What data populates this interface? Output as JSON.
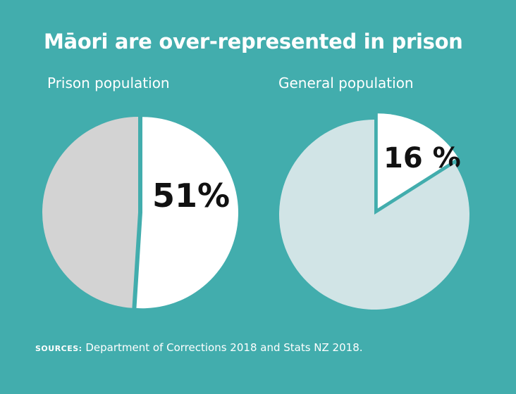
{
  "title": "Māori are over-represented in prison",
  "colors": {
    "background": "#42adad",
    "highlight": "#ffffff",
    "prison_rest": "#d3d3d3",
    "general_rest": "#d1e4e6"
  },
  "chart_data": [
    {
      "type": "pie",
      "title": "Prison population",
      "slices": [
        {
          "label": "51%",
          "value": 51,
          "color": "#ffffff",
          "exploded": true
        },
        {
          "label": "",
          "value": 49,
          "color": "#d3d3d3",
          "exploded": false
        }
      ]
    },
    {
      "type": "pie",
      "title": "General population",
      "slices": [
        {
          "label": "16 %",
          "value": 16,
          "color": "#ffffff",
          "exploded": true
        },
        {
          "label": "",
          "value": 84,
          "color": "#d1e4e6",
          "exploded": false
        }
      ]
    }
  ],
  "sources": {
    "key": "SOURCES:",
    "text": " Department of Corrections 2018 and Stats NZ 2018."
  }
}
